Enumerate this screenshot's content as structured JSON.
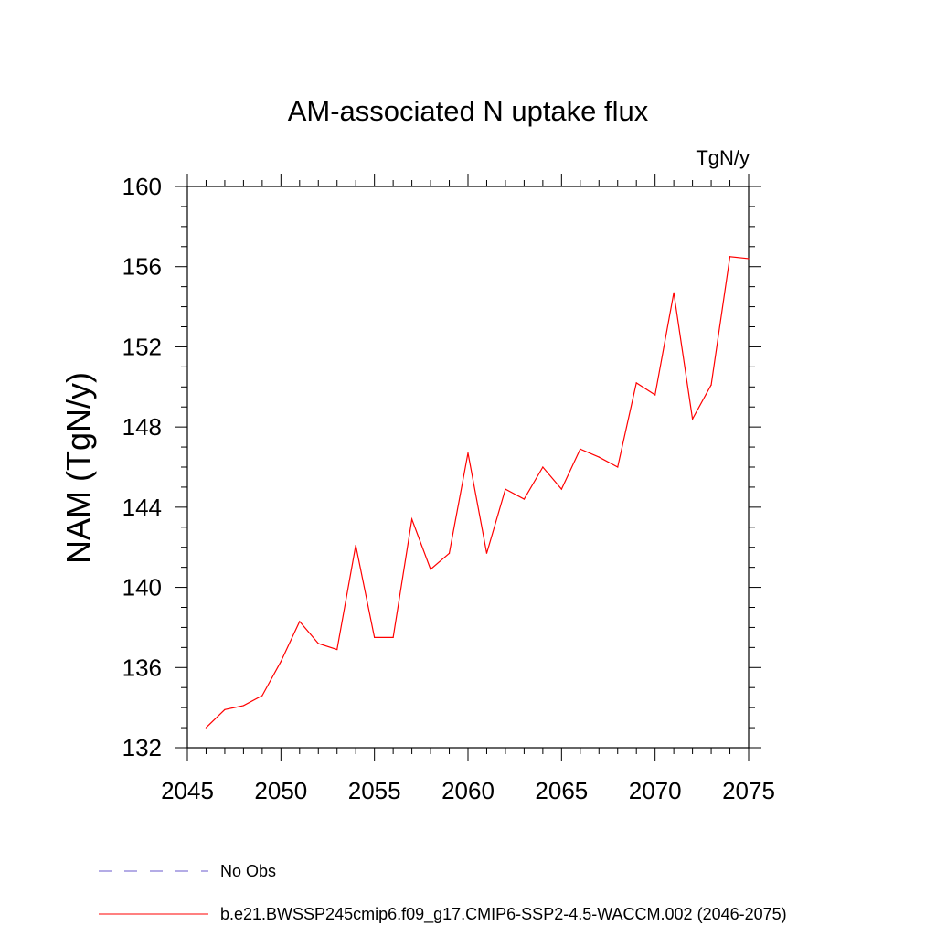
{
  "chart_data": {
    "type": "line",
    "title": "AM-associated N uptake flux",
    "units_label": "TgN/y",
    "xlabel": "",
    "ylabel": "NAM  (TgN/y)",
    "xlim": [
      2045,
      2075
    ],
    "ylim": [
      132,
      160
    ],
    "x_ticks": [
      2045,
      2050,
      2055,
      2060,
      2065,
      2070,
      2075
    ],
    "y_ticks": [
      132,
      136,
      140,
      144,
      148,
      152,
      156,
      160
    ],
    "grid": false,
    "legend_position": "bottom",
    "series": [
      {
        "name": "b.e21.BWSSP245cmip6.f09_g17.CMIP6-SSP2-4.5-WACCM.002 (2046-2075)",
        "color": "#ff0000",
        "style": "solid",
        "x": [
          2046,
          2047,
          2048,
          2049,
          2050,
          2051,
          2052,
          2053,
          2054,
          2055,
          2056,
          2057,
          2058,
          2059,
          2060,
          2061,
          2062,
          2063,
          2064,
          2065,
          2066,
          2067,
          2068,
          2069,
          2070,
          2071,
          2072,
          2073,
          2074,
          2075
        ],
        "values": [
          133.0,
          133.9,
          134.1,
          134.6,
          136.3,
          138.3,
          137.2,
          136.9,
          142.1,
          137.5,
          137.5,
          143.4,
          140.9,
          141.7,
          146.7,
          141.7,
          144.9,
          144.4,
          146.0,
          144.9,
          146.9,
          146.5,
          146.0,
          150.2,
          149.6,
          154.7,
          148.4,
          150.1,
          156.5,
          156.4
        ]
      }
    ],
    "legend": [
      {
        "label": "No Obs",
        "color": "#6a5acd",
        "style": "dashed"
      },
      {
        "label": "b.e21.BWSSP245cmip6.f09_g17.CMIP6-SSP2-4.5-WACCM.002 (2046-2075)",
        "color": "#ff0000",
        "style": "solid"
      }
    ]
  }
}
